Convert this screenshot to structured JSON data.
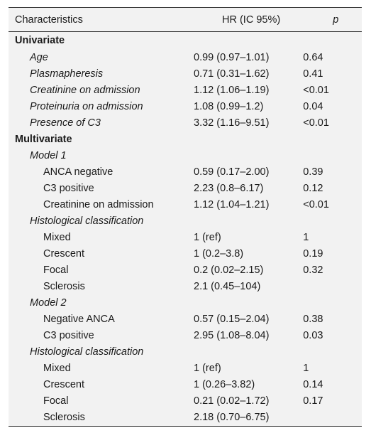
{
  "header": {
    "characteristics": "Characteristics",
    "hr": "HR (IC 95%)",
    "p": "p"
  },
  "rows": [
    {
      "label": "Univariate",
      "hr": "",
      "p": "",
      "level": 0
    },
    {
      "label": "Age",
      "hr": "0.99 (0.97–1.01)",
      "p": "0.64",
      "level": 1
    },
    {
      "label": "Plasmapheresis",
      "hr": "0.71 (0.31–1.62)",
      "p": "0.41",
      "level": 1
    },
    {
      "label": "Creatinine on admission",
      "hr": "1.12 (1.06–1.19)",
      "p": "<0.01",
      "level": 1
    },
    {
      "label": "Proteinuria on admission",
      "hr": "1.08 (0.99–1.2)",
      "p": "0.04",
      "level": 1
    },
    {
      "label": "Presence of C3",
      "hr": "3.32 (1.16–9.51)",
      "p": "<0.01",
      "level": 1
    },
    {
      "label": "Multivariate",
      "hr": "",
      "p": "",
      "level": 0
    },
    {
      "label": "Model 1",
      "hr": "",
      "p": "",
      "level": 1
    },
    {
      "label": "ANCA negative",
      "hr": "0.59 (0.17–2.00)",
      "p": "0.39",
      "level": 2
    },
    {
      "label": "C3 positive",
      "hr": "2.23 (0.8–6.17)",
      "p": "0.12",
      "level": 2
    },
    {
      "label": "Creatinine on admission",
      "hr": "1.12 (1.04–1.21)",
      "p": "<0.01",
      "level": 2
    },
    {
      "label": "Histological classification",
      "hr": "",
      "p": "",
      "level": 1
    },
    {
      "label": "Mixed",
      "hr": "1 (ref)",
      "p": "1",
      "level": 2
    },
    {
      "label": "Crescent",
      "hr": "1 (0.2–3.8)",
      "p": "0.19",
      "level": 2
    },
    {
      "label": "Focal",
      "hr": "0.2 (0.02–2.15)",
      "p": "0.32",
      "level": 2
    },
    {
      "label": "Sclerosis",
      "hr": "2.1 (0.45–104)",
      "p": "",
      "level": 2
    },
    {
      "label": "Model 2",
      "hr": "",
      "p": "",
      "level": 1
    },
    {
      "label": "Negative ANCA",
      "hr": "0.57 (0.15–2.04)",
      "p": "0.38",
      "level": 2
    },
    {
      "label": "C3 positive",
      "hr": "2.95 (1.08–8.04)",
      "p": "0.03",
      "level": 2
    },
    {
      "label": "Histological classification",
      "hr": "",
      "p": "",
      "level": 1
    },
    {
      "label": "Mixed",
      "hr": "1 (ref)",
      "p": "1",
      "level": 2
    },
    {
      "label": "Crescent",
      "hr": "1 (0.26–3.82)",
      "p": "0.14",
      "level": 2
    },
    {
      "label": "Focal",
      "hr": "0.21 (0.02–1.72)",
      "p": "0.17",
      "level": 2
    },
    {
      "label": "Sclerosis",
      "hr": "2.18 (0.70–6.75)",
      "p": "",
      "level": 2
    }
  ]
}
